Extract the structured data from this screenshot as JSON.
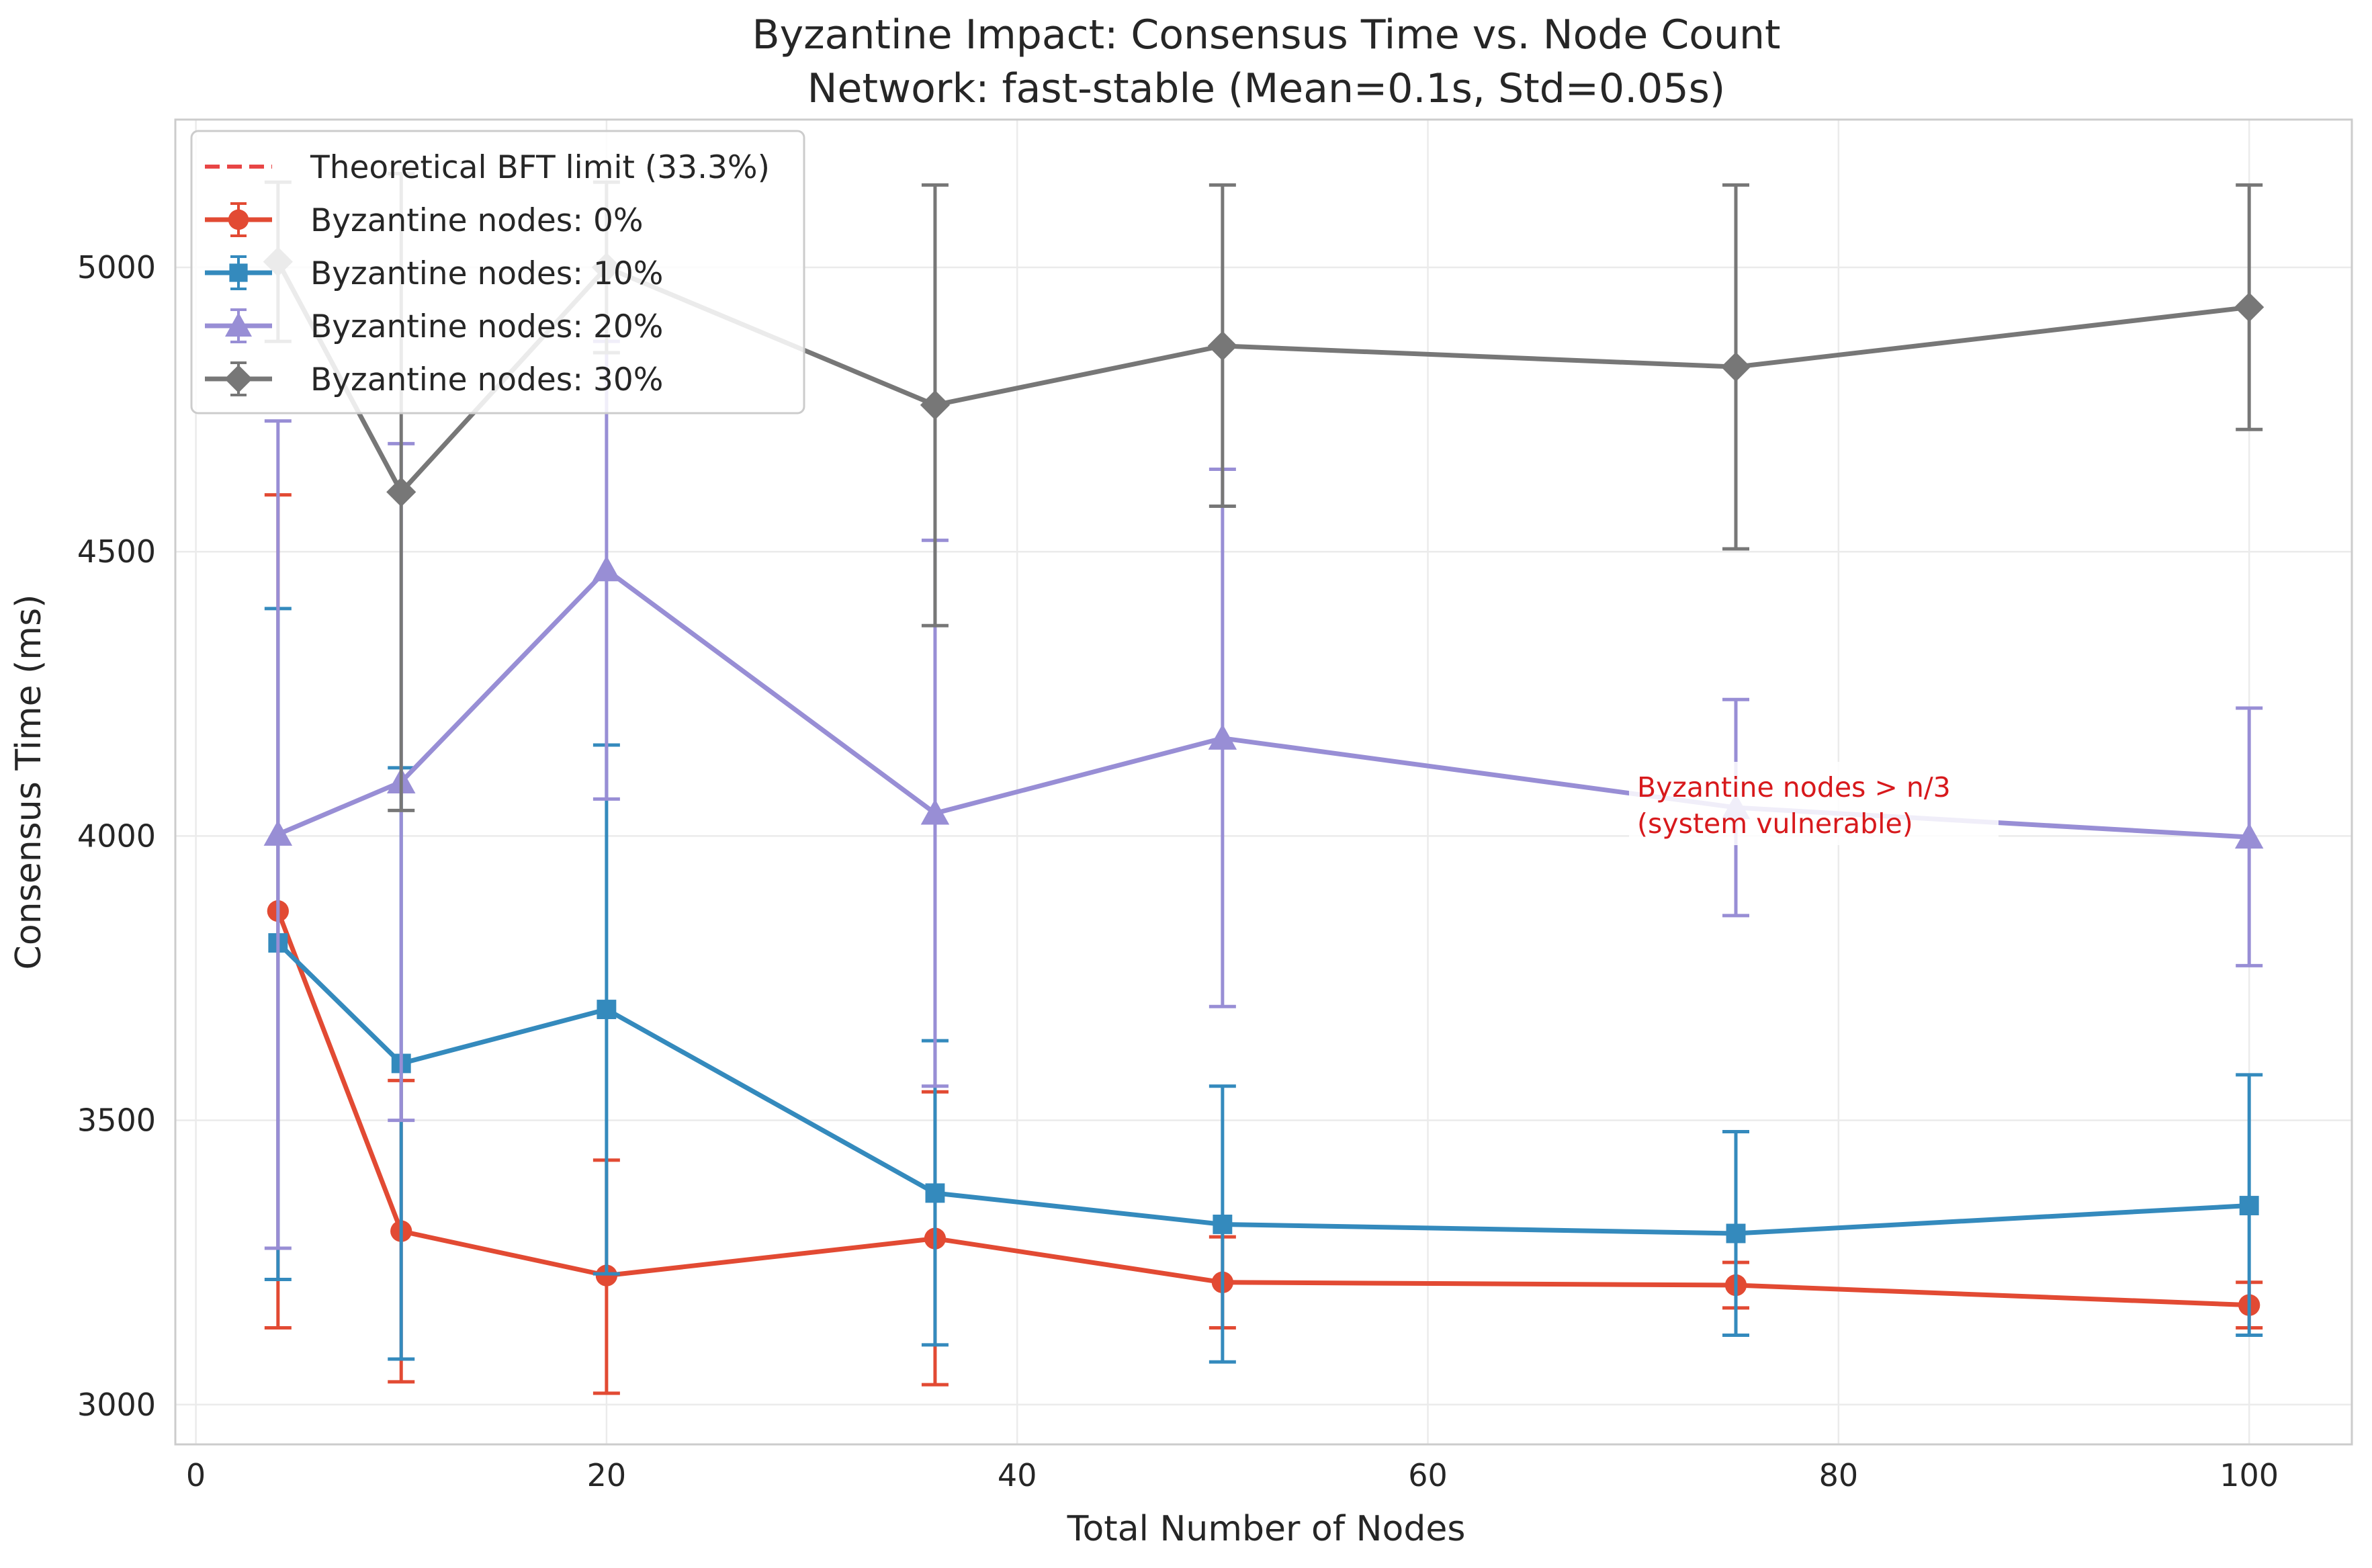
{
  "chart_data": {
    "type": "line",
    "title": "Byzantine Impact: Consensus Time vs. Node Count",
    "subtitle": "Network: fast-stable (Mean=0.1s, Std=0.05s)",
    "xlabel": "Total Number of Nodes",
    "ylabel": "Consensus Time (ms)",
    "xlim": [
      -1,
      105
    ],
    "ylim": [
      2930,
      5260
    ],
    "xticks": [
      0,
      20,
      40,
      60,
      80,
      100
    ],
    "yticks": [
      3000,
      3500,
      4000,
      4500,
      5000
    ],
    "grid": true,
    "legend_position": "upper-left",
    "x": [
      4,
      10,
      20,
      36,
      50,
      75,
      100
    ],
    "series": [
      {
        "name": "Byzantine nodes: 0%",
        "color": "#e24a33",
        "marker": "circle",
        "values": [
          3868,
          3305,
          3227,
          3292,
          3215,
          3210,
          3175
        ],
        "err_low": [
          3135,
          3040,
          3020,
          3035,
          3135,
          3170,
          3135
        ],
        "err_high": [
          4600,
          3570,
          3430,
          3550,
          3295,
          3250,
          3215
        ]
      },
      {
        "name": "Byzantine nodes: 10%",
        "color": "#348abd",
        "marker": "square",
        "values": [
          3812,
          3600,
          3695,
          3372,
          3317,
          3301,
          3350
        ],
        "err_low": [
          3220,
          3080,
          3230,
          3105,
          3075,
          3122,
          3122
        ],
        "err_high": [
          4400,
          4120,
          4160,
          3640,
          3560,
          3480,
          3580
        ]
      },
      {
        "name": "Byzantine nodes: 20%",
        "color": "#988ed5",
        "marker": "triangle",
        "values": [
          4003,
          4095,
          4468,
          4040,
          4172,
          4050,
          3998
        ],
        "err_low": [
          3275,
          3500,
          4065,
          3560,
          3700,
          3860,
          3772
        ],
        "err_high": [
          4730,
          4690,
          4870,
          4520,
          4645,
          4240,
          4225
        ]
      },
      {
        "name": "Byzantine nodes: 30%",
        "color": "#777777",
        "marker": "diamond",
        "values": [
          5010,
          4605,
          5000,
          4758,
          4862,
          4825,
          4930
        ],
        "err_low": [
          4870,
          4045,
          4850,
          4370,
          4580,
          4505,
          4715
        ],
        "err_high": [
          5150,
          5165,
          5150,
          5145,
          5145,
          5145,
          5145
        ]
      }
    ],
    "reference_line": {
      "label": "Theoretical BFT limit (33.3%)",
      "color": "#e84545",
      "style": "dashed"
    },
    "annotation": {
      "lines": [
        "Byzantine nodes > n/3",
        "(system vulnerable)"
      ],
      "x": 70,
      "y": 4000
    }
  }
}
